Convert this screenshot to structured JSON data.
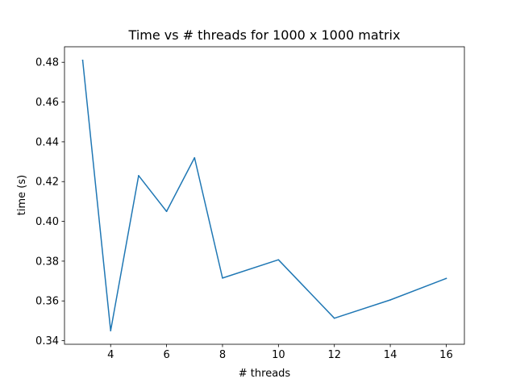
{
  "chart_data": {
    "type": "line",
    "title": "Time vs # threads for 1000 x 1000 matrix",
    "xlabel": "# threads",
    "ylabel": "time (s)",
    "x": [
      3,
      4,
      5,
      6,
      7,
      8,
      10,
      12,
      14,
      16
    ],
    "series": [
      {
        "values": [
          0.481,
          0.345,
          0.423,
          0.405,
          0.432,
          0.3715,
          0.3807,
          0.3513,
          0.3605,
          0.3713
        ],
        "color": "#1f77b4"
      }
    ],
    "xlim": [
      2.35,
      16.65
    ],
    "ylim": [
      0.3382,
      0.4878
    ],
    "xticks": [
      4,
      6,
      8,
      10,
      12,
      14,
      16
    ],
    "xtick_labels": [
      "4",
      "6",
      "8",
      "10",
      "12",
      "14",
      "16"
    ],
    "yticks": [
      0.34,
      0.36,
      0.38,
      0.4,
      0.42,
      0.44,
      0.46,
      0.48
    ],
    "ytick_labels": [
      "0.34",
      "0.36",
      "0.38",
      "0.40",
      "0.42",
      "0.44",
      "0.46",
      "0.48"
    ],
    "grid": false,
    "legend": "none"
  }
}
